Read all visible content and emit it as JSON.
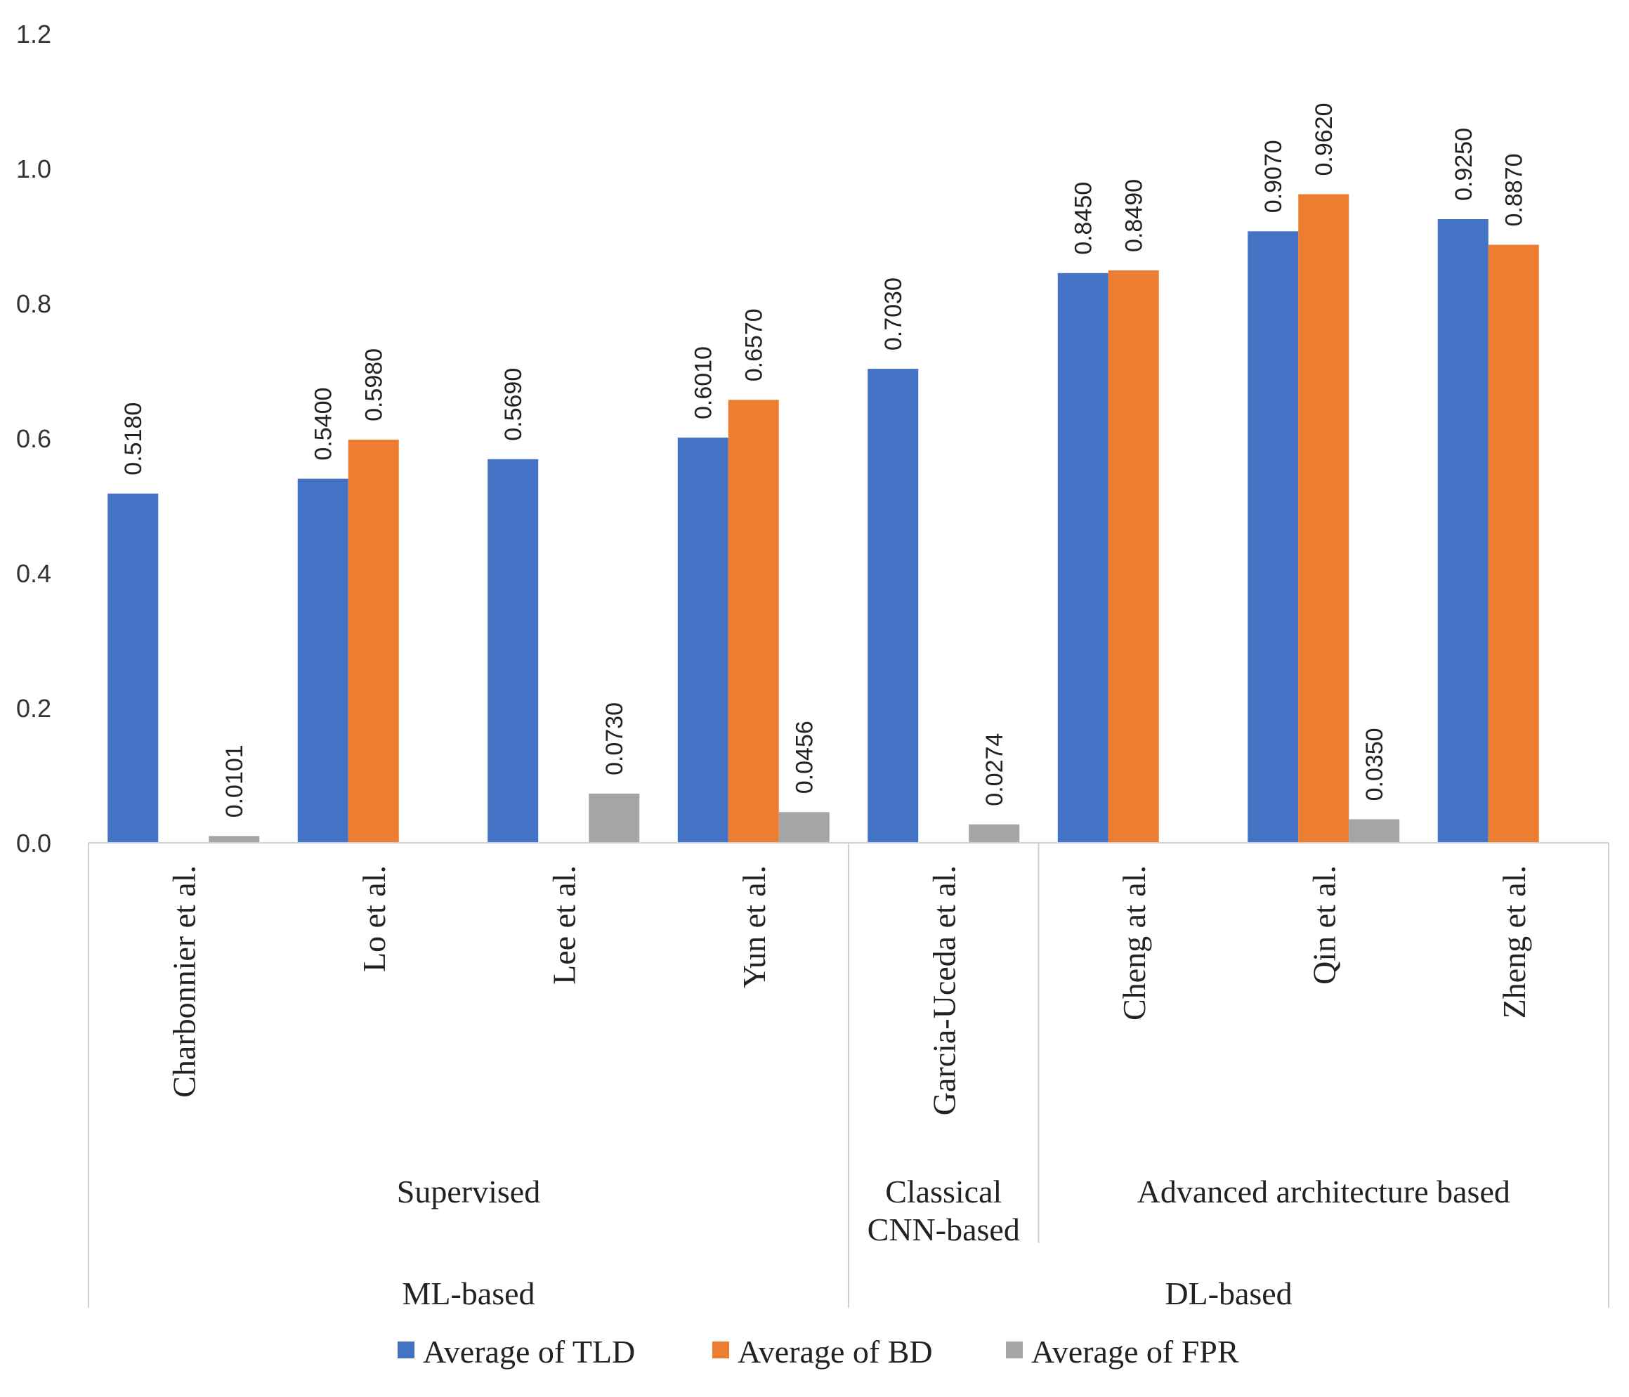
{
  "chart_data": {
    "type": "bar",
    "title": "",
    "xlabel": "",
    "ylabel": "",
    "ylim": [
      0,
      1.2
    ],
    "yticks": [
      "0.0",
      "0.2",
      "0.4",
      "0.6",
      "0.8",
      "1.0",
      "1.2"
    ],
    "grid": false,
    "legend_position": "bottom",
    "categories": [
      "Charbonnier et al.",
      "Lo et al.",
      "Lee et al.",
      "Yun et al.",
      "Garcia-Uceda et al.",
      "Cheng at al.",
      "Qin et al.",
      "Zheng et al."
    ],
    "series": [
      {
        "name": "Average of TLD",
        "color": "#4472C4",
        "values": [
          0.518,
          0.54,
          0.569,
          0.601,
          0.703,
          0.845,
          0.907,
          0.925
        ],
        "labels": [
          "0.5180",
          "0.5400",
          "0.5690",
          "0.6010",
          "0.7030",
          "0.8450",
          "0.9070",
          "0.9250"
        ]
      },
      {
        "name": "Average of BD",
        "color": "#ED7D31",
        "values": [
          null,
          0.598,
          null,
          0.657,
          null,
          0.849,
          0.962,
          0.887
        ],
        "labels": [
          "",
          "0.5980",
          "",
          "0.6570",
          "",
          "0.8490",
          "0.9620",
          "0.8870"
        ]
      },
      {
        "name": "Average of FPR",
        "color": "#A5A5A5",
        "values": [
          0.0101,
          null,
          0.073,
          0.0456,
          0.0274,
          null,
          0.035,
          null
        ],
        "labels": [
          "0.0101",
          "",
          "0.0730",
          "0.0456",
          "0.0274",
          "",
          "0.0350",
          ""
        ]
      }
    ],
    "groups_level1": [
      {
        "label": "Supervised",
        "start": 0,
        "end": 4
      },
      {
        "label": "Classical CNN-based",
        "lines": [
          "Classical",
          "CNN-based"
        ],
        "start": 4,
        "end": 5
      },
      {
        "label": "Advanced architecture based",
        "start": 5,
        "end": 8
      }
    ],
    "groups_level2": [
      {
        "label": "ML-based",
        "start": 0,
        "end": 4
      },
      {
        "label": "DL-based",
        "start": 4,
        "end": 8
      }
    ]
  }
}
